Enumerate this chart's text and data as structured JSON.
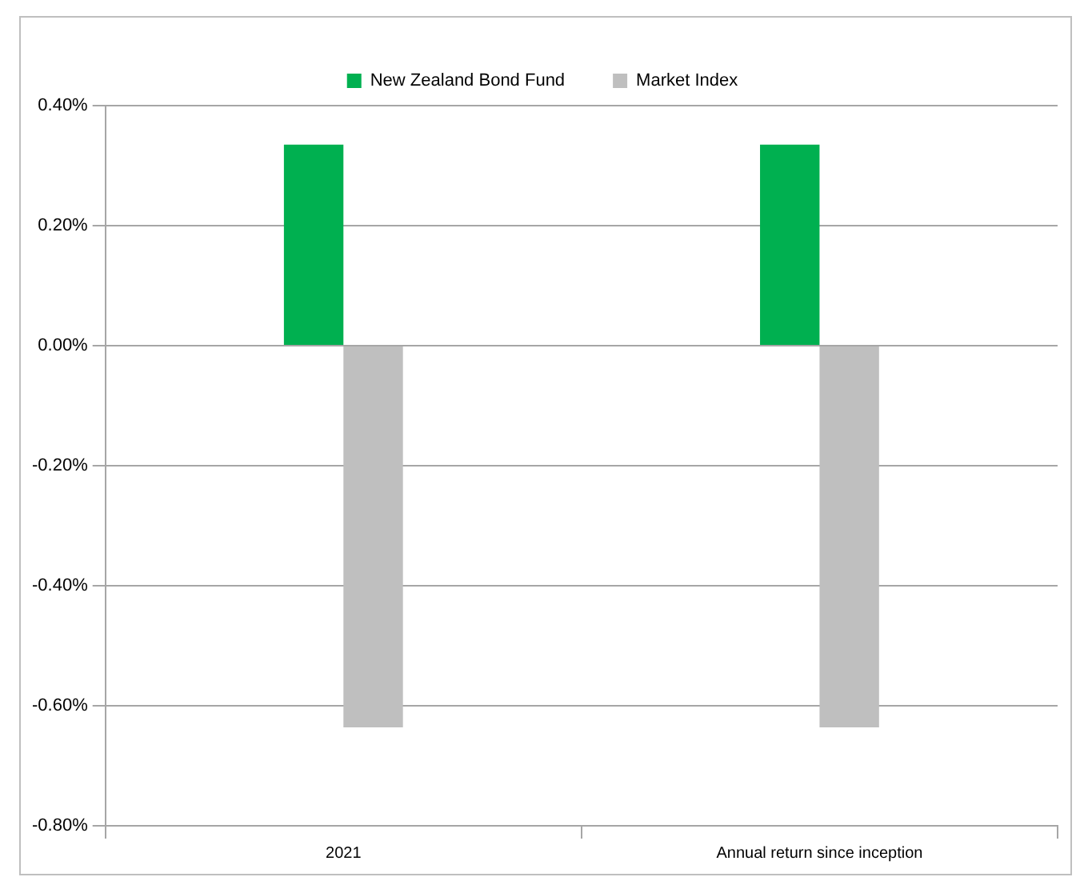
{
  "chart_data": {
    "type": "bar",
    "categories": [
      "2021",
      "Annual return since inception"
    ],
    "series": [
      {
        "name": "New Zealand Bond Fund",
        "color": "#00b050",
        "values": [
          0.335,
          0.335
        ]
      },
      {
        "name": "Market Index",
        "color": "#bfbfbf",
        "values": [
          -0.636,
          -0.636
        ]
      }
    ],
    "ylim": [
      -0.8,
      0.4
    ],
    "yticks": [
      {
        "value": -0.8,
        "label": "-0.80%"
      },
      {
        "value": -0.6,
        "label": "-0.60%"
      },
      {
        "value": -0.4,
        "label": "-0.40%"
      },
      {
        "value": -0.2,
        "label": "-0.20%"
      },
      {
        "value": 0,
        "label": "0.00%"
      },
      {
        "value": 0.2,
        "label": "0.20%"
      },
      {
        "value": 0.4,
        "label": "0.40%"
      }
    ],
    "grid": "y",
    "legend": "top"
  }
}
